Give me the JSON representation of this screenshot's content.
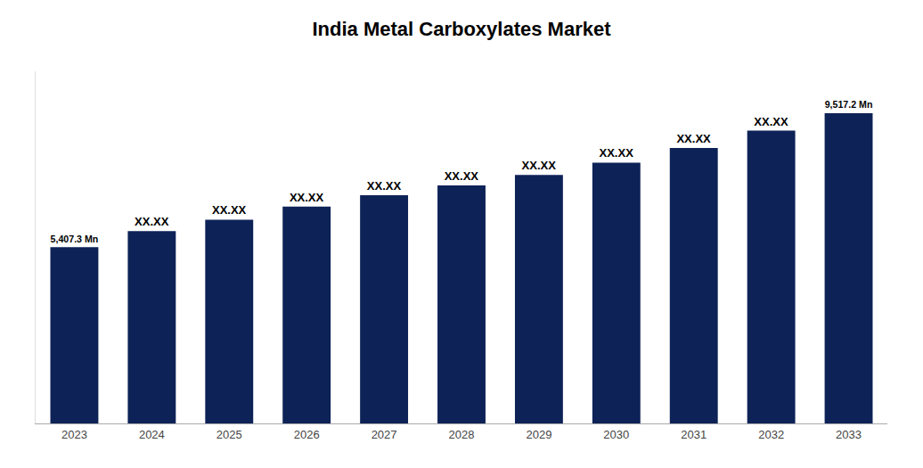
{
  "chart_data": {
    "type": "bar",
    "title": "India Metal Carboxylates Market",
    "categories": [
      "2023",
      "2024",
      "2025",
      "2026",
      "2027",
      "2028",
      "2029",
      "2030",
      "2031",
      "2032",
      "2033"
    ],
    "values": [
      5407.3,
      5900,
      6250,
      6650,
      7000,
      7300,
      7620,
      8000,
      8450,
      8980,
      9517.2
    ],
    "value_labels": [
      "5,407.3 Mn",
      "XX.XX",
      "XX.XX",
      "XX.XX",
      "XX.XX",
      "XX.XX",
      "XX.XX",
      "XX.XX",
      "XX.XX",
      "XX.XX",
      "9,517.2 Mn"
    ],
    "data_labels": true,
    "color": "#0d2257",
    "ylim": [
      0,
      10800
    ],
    "grid": false,
    "tick_labels": "x"
  }
}
